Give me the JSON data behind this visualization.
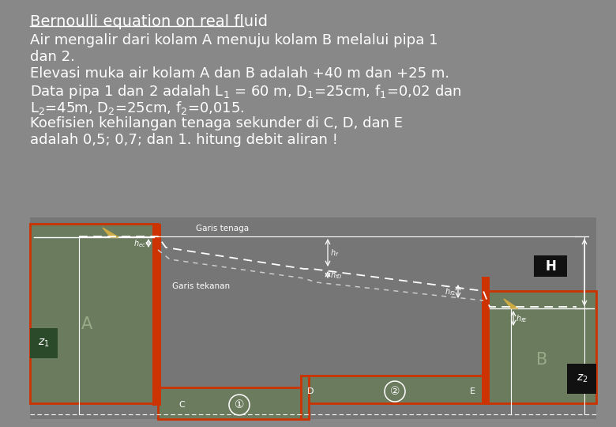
{
  "bg_color": "#888888",
  "diagram_bg": "#6b7b5e",
  "pipe_border": "#cc3300",
  "white": "#ffffff",
  "label_bg": "#2a4a2a",
  "H_bg": "#111111",
  "title_text": "Bernoulli equation on real fluid",
  "body_lines": [
    "Air mengalir dari kolam A menuju kolam B melalui pipa 1",
    "dan 2.",
    "Elevasi muka air kolam A dan B adalah +40 m dan +25 m.",
    "Data pipa 1 dan 2 adalah L$_1$ = 60 m, D$_1$=25cm, f$_1$=0,02 dan",
    "L$_2$=45m, D$_2$=25cm, f$_2$=0,015.",
    "Koefisien kehilangan tenaga sekunder di C, D, dan E",
    "adalah 0,5; 0,7; dan 1. hitung debit aliran !"
  ],
  "font_size_title": 14,
  "font_size_body": 13,
  "triangle_color": "#ccaa44"
}
